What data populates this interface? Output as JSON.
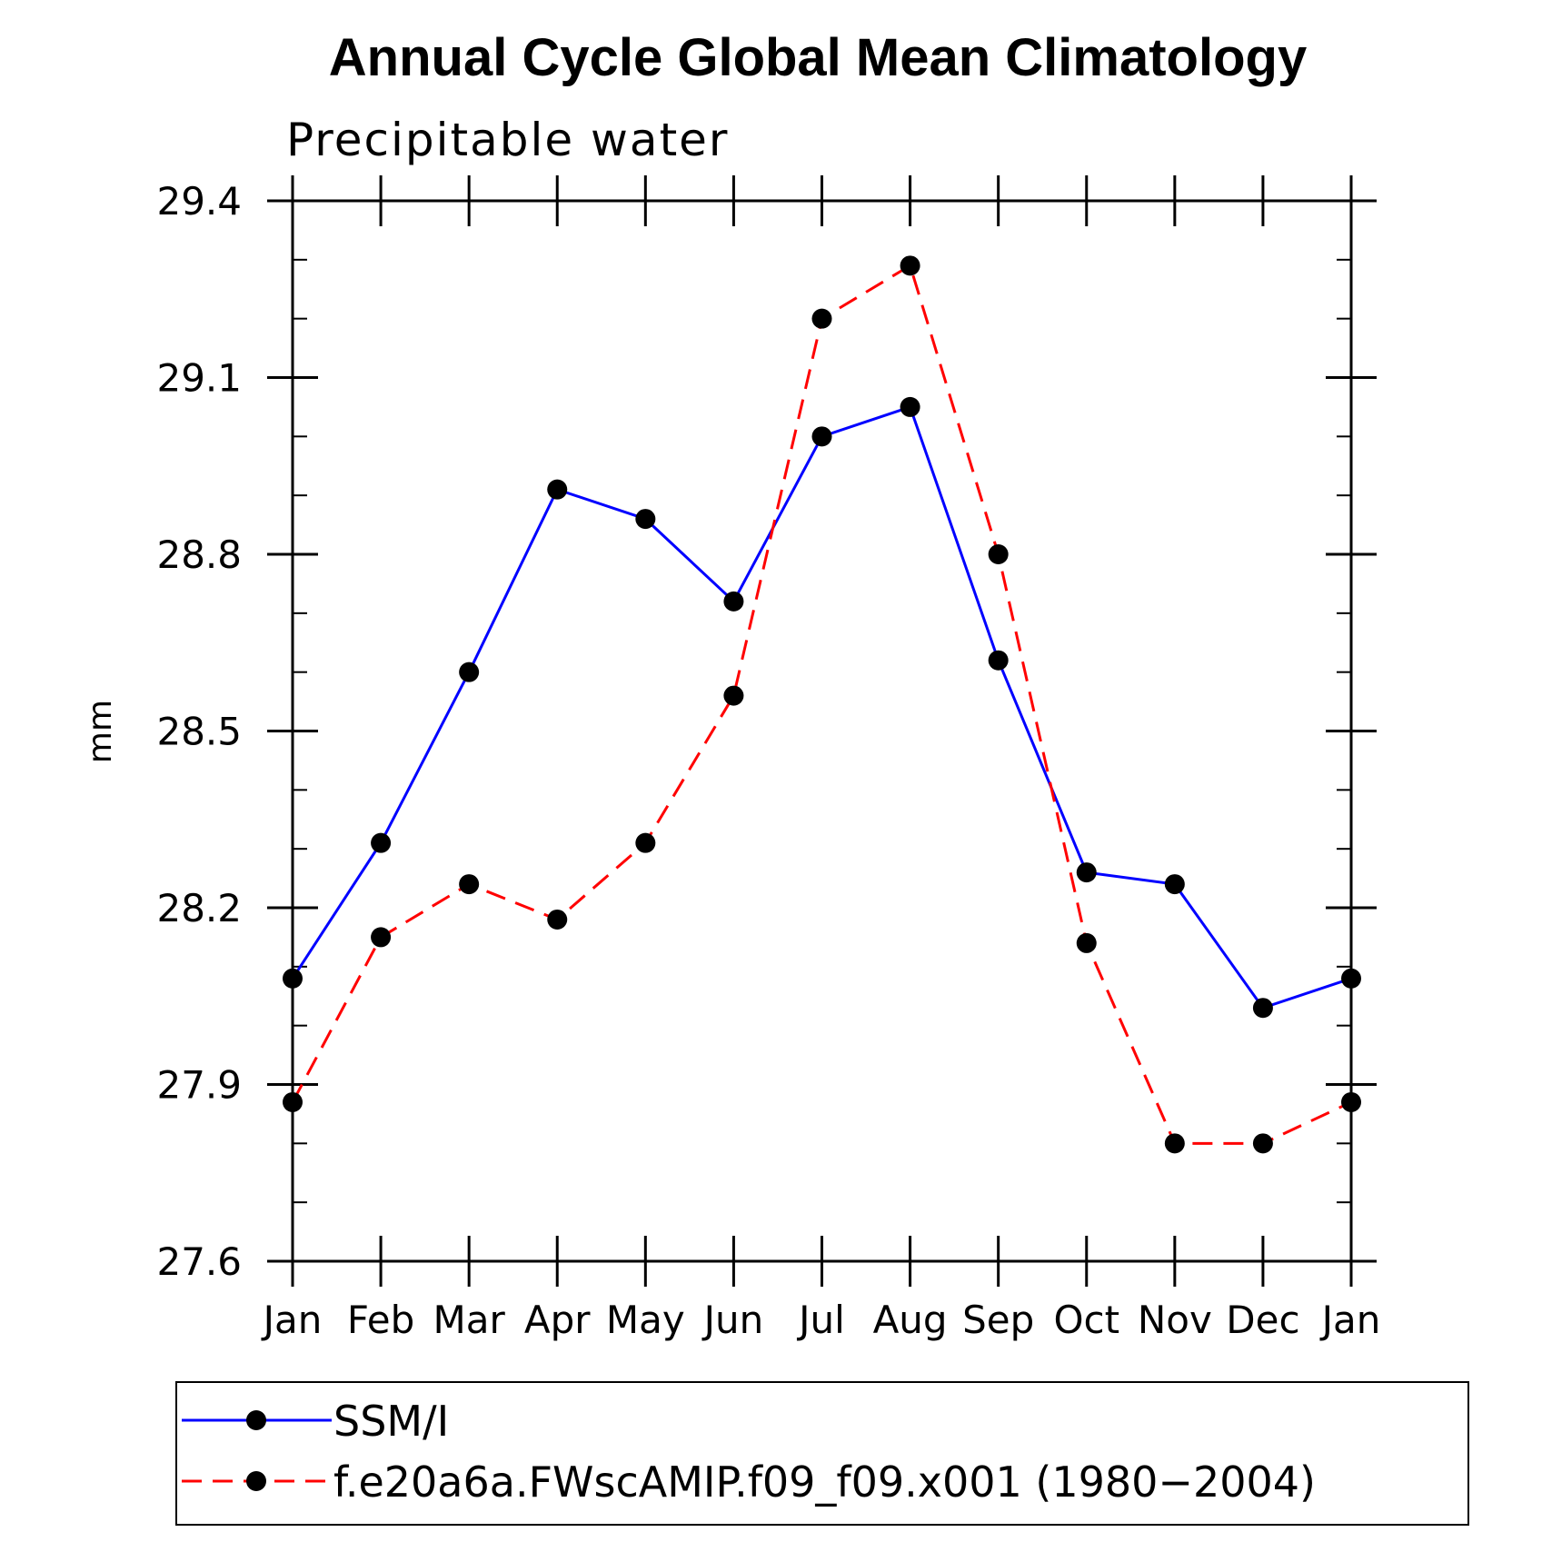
{
  "chart_data": {
    "type": "line",
    "title": "Annual Cycle Global Mean Climatology",
    "subtitle": "Precipitable water",
    "ylabel": "mm",
    "xlabel": "",
    "categories": [
      "Jan",
      "Feb",
      "Mar",
      "Apr",
      "May",
      "Jun",
      "Jul",
      "Aug",
      "Sep",
      "Oct",
      "Nov",
      "Dec",
      "Jan"
    ],
    "ylim": [
      27.6,
      29.4
    ],
    "yticks": [
      "27.6",
      "27.9",
      "28.2",
      "28.5",
      "28.8",
      "29.1",
      "29.4"
    ],
    "ytick_values": [
      27.6,
      27.9,
      28.2,
      28.5,
      28.8,
      29.1,
      29.4
    ],
    "yminor_step": 0.1,
    "grid": false,
    "legend_position": "bottom",
    "series": [
      {
        "name": "SSM/I",
        "color": "#0000ff",
        "dash": "solid",
        "marker": "filled-circle",
        "values": [
          28.08,
          28.31,
          28.6,
          28.91,
          28.86,
          28.72,
          29.0,
          29.05,
          28.62,
          28.26,
          28.24,
          28.03,
          28.08
        ]
      },
      {
        "name": "f.e20a6a.FWscAMIP.f09_f09.x001 (1980−2004)",
        "color": "#ff0000",
        "dash": "dashed",
        "marker": "filled-circle",
        "values": [
          27.87,
          28.15,
          28.24,
          28.18,
          28.31,
          28.56,
          29.2,
          29.29,
          28.8,
          28.14,
          27.8,
          27.8,
          27.87
        ]
      }
    ]
  }
}
